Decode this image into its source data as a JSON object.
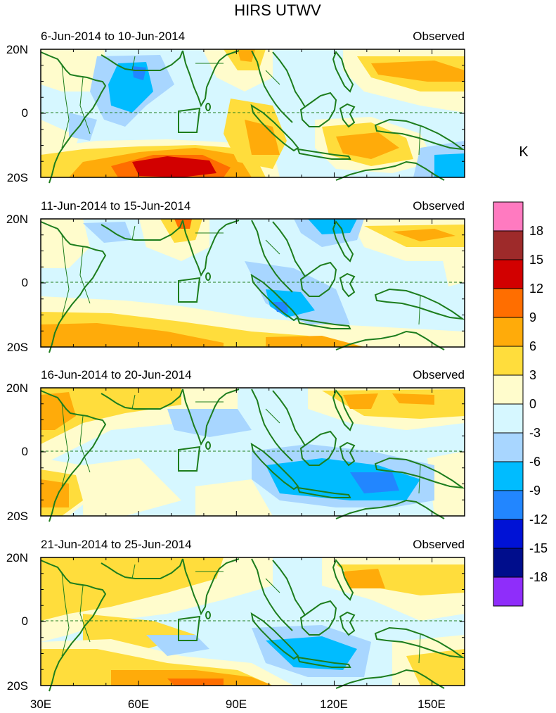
{
  "title": "HIRS UTWV",
  "unit": "K",
  "panels": [
    {
      "date_range": "6-Jun-2014 to 10-Jun-2014",
      "tag": "Observed"
    },
    {
      "date_range": "11-Jun-2014 to 15-Jun-2014",
      "tag": "Observed"
    },
    {
      "date_range": "16-Jun-2014 to 20-Jun-2014",
      "tag": "Observed"
    },
    {
      "date_range": "21-Jun-2014 to 25-Jun-2014",
      "tag": "Observed"
    }
  ],
  "lat_labels": [
    "20N",
    "0",
    "20S"
  ],
  "lon_labels": [
    "30E",
    "60E",
    "90E",
    "120E",
    "150E"
  ],
  "colorbar": {
    "labels": [
      "18",
      "15",
      "12",
      "9",
      "6",
      "3",
      "0",
      "-3",
      "-6",
      "-9",
      "-12",
      "-15",
      "-18"
    ],
    "colors": [
      "#ff7ac0",
      "#9e2a2a",
      "#d20000",
      "#ff6e00",
      "#ffab0a",
      "#ffdd3c",
      "#fffccc",
      "#d6f7ff",
      "#a8d6ff",
      "#00bcff",
      "#2286ff",
      "#0012d6",
      "#000d8c",
      "#8f2dfa"
    ]
  },
  "colors": {
    "background": "#d6f7ff",
    "coast": "#1d7d1d",
    "border": "#1d7d1d"
  }
}
